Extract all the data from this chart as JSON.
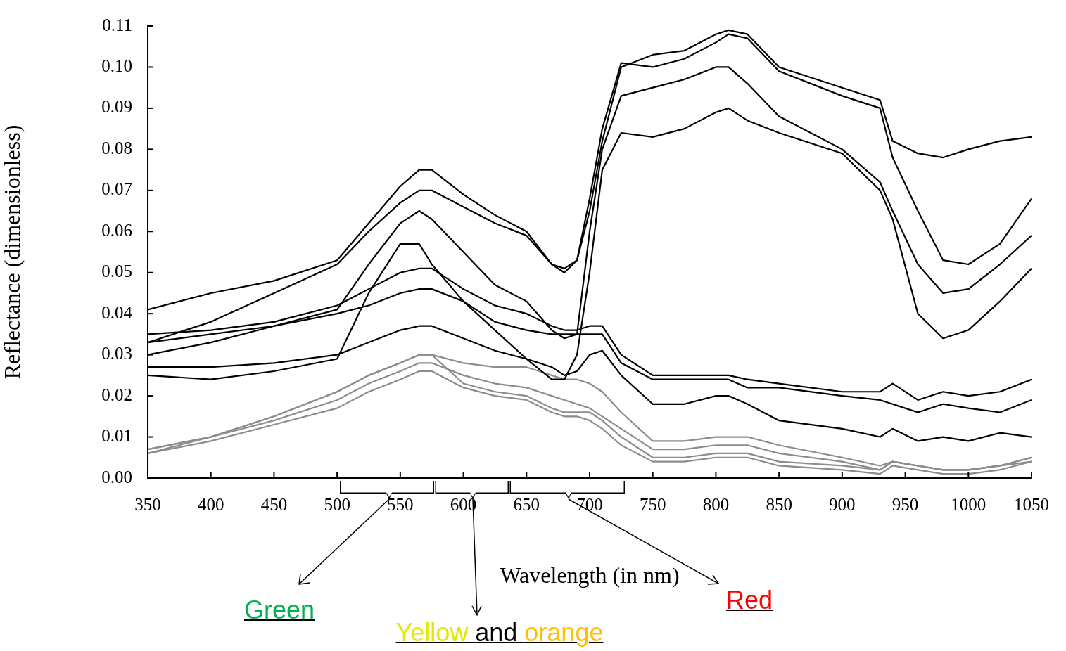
{
  "chart_data": {
    "type": "line",
    "xlabel": "Wavelength (in nm)",
    "ylabel": "Reflectance (dimensionless)",
    "x": [
      350,
      400,
      450,
      500,
      525,
      550,
      565,
      575,
      600,
      625,
      650,
      670,
      680,
      690,
      700,
      710,
      725,
      750,
      775,
      800,
      810,
      825,
      850,
      900,
      930,
      940,
      960,
      980,
      1000,
      1025,
      1050
    ],
    "series": [
      {
        "color": "#000000",
        "values": [
          0.041,
          0.045,
          0.048,
          0.053,
          0.062,
          0.071,
          0.075,
          0.075,
          0.069,
          0.064,
          0.06,
          0.052,
          0.051,
          0.053,
          0.065,
          0.082,
          0.1,
          0.103,
          0.104,
          0.108,
          0.109,
          0.108,
          0.1,
          0.095,
          0.092,
          0.082,
          0.079,
          0.078,
          0.08,
          0.082,
          0.083
        ]
      },
      {
        "color": "#000000",
        "values": [
          0.033,
          0.038,
          0.045,
          0.052,
          0.06,
          0.067,
          0.07,
          0.07,
          0.066,
          0.062,
          0.059,
          0.052,
          0.05,
          0.053,
          0.068,
          0.085,
          0.101,
          0.1,
          0.102,
          0.106,
          0.108,
          0.107,
          0.099,
          0.093,
          0.09,
          0.078,
          0.065,
          0.053,
          0.052,
          0.057,
          0.068
        ]
      },
      {
        "color": "#000000",
        "values": [
          0.03,
          0.033,
          0.037,
          0.041,
          0.052,
          0.062,
          0.065,
          0.063,
          0.055,
          0.047,
          0.043,
          0.036,
          0.034,
          0.035,
          0.06,
          0.08,
          0.093,
          0.095,
          0.097,
          0.1,
          0.1,
          0.096,
          0.088,
          0.08,
          0.072,
          0.065,
          0.052,
          0.045,
          0.046,
          0.052,
          0.059
        ]
      },
      {
        "color": "#000000",
        "values": [
          0.025,
          0.024,
          0.026,
          0.029,
          0.045,
          0.057,
          0.057,
          0.052,
          0.043,
          0.036,
          0.029,
          0.024,
          0.024,
          0.03,
          0.05,
          0.075,
          0.084,
          0.083,
          0.085,
          0.089,
          0.09,
          0.087,
          0.084,
          0.079,
          0.07,
          0.063,
          0.04,
          0.034,
          0.036,
          0.043,
          0.051
        ]
      },
      {
        "color": "#000000",
        "values": [
          0.035,
          0.036,
          0.038,
          0.042,
          0.046,
          0.05,
          0.051,
          0.051,
          0.046,
          0.042,
          0.04,
          0.037,
          0.036,
          0.036,
          0.037,
          0.037,
          0.03,
          0.025,
          0.025,
          0.025,
          0.025,
          0.024,
          0.023,
          0.021,
          0.021,
          0.023,
          0.019,
          0.021,
          0.02,
          0.021,
          0.024
        ]
      },
      {
        "color": "#000000",
        "values": [
          0.033,
          0.035,
          0.037,
          0.04,
          0.042,
          0.045,
          0.046,
          0.046,
          0.043,
          0.038,
          0.036,
          0.035,
          0.035,
          0.035,
          0.035,
          0.035,
          0.028,
          0.024,
          0.024,
          0.024,
          0.024,
          0.022,
          0.022,
          0.02,
          0.019,
          0.018,
          0.016,
          0.018,
          0.017,
          0.016,
          0.019
        ]
      },
      {
        "color": "#000000",
        "values": [
          0.027,
          0.027,
          0.028,
          0.03,
          0.033,
          0.036,
          0.037,
          0.037,
          0.034,
          0.031,
          0.029,
          0.027,
          0.025,
          0.026,
          0.03,
          0.031,
          0.025,
          0.018,
          0.018,
          0.02,
          0.02,
          0.018,
          0.014,
          0.012,
          0.01,
          0.012,
          0.009,
          0.01,
          0.009,
          0.011,
          0.01
        ]
      },
      {
        "color": "#8c8c8c",
        "values": [
          0.006,
          0.01,
          0.015,
          0.021,
          0.025,
          0.028,
          0.03,
          0.03,
          0.028,
          0.027,
          0.027,
          0.025,
          0.024,
          0.024,
          0.023,
          0.021,
          0.016,
          0.009,
          0.009,
          0.01,
          0.01,
          0.01,
          0.008,
          0.005,
          0.003,
          0.004,
          0.003,
          0.002,
          0.002,
          0.003,
          0.005
        ]
      },
      {
        "color": "#8c8c8c",
        "values": [
          0.007,
          0.01,
          0.015,
          0.021,
          0.025,
          0.028,
          0.03,
          0.03,
          0.023,
          0.021,
          0.02,
          0.017,
          0.016,
          0.016,
          0.016,
          0.014,
          0.01,
          0.005,
          0.005,
          0.006,
          0.006,
          0.006,
          0.004,
          0.003,
          0.002,
          0.004,
          0.003,
          0.002,
          0.002,
          0.003,
          0.005
        ]
      },
      {
        "color": "#8c8c8c",
        "values": [
          0.007,
          0.01,
          0.014,
          0.019,
          0.023,
          0.026,
          0.028,
          0.028,
          0.025,
          0.023,
          0.022,
          0.02,
          0.019,
          0.018,
          0.017,
          0.015,
          0.012,
          0.007,
          0.007,
          0.008,
          0.008,
          0.008,
          0.006,
          0.004,
          0.002,
          0.004,
          0.003,
          0.002,
          0.002,
          0.003,
          0.004
        ]
      },
      {
        "color": "#8c8c8c",
        "values": [
          0.006,
          0.009,
          0.013,
          0.017,
          0.021,
          0.024,
          0.026,
          0.026,
          0.022,
          0.02,
          0.019,
          0.016,
          0.015,
          0.015,
          0.014,
          0.012,
          0.008,
          0.004,
          0.004,
          0.005,
          0.005,
          0.005,
          0.003,
          0.002,
          0.001,
          0.003,
          0.002,
          0.001,
          0.001,
          0.002,
          0.004
        ]
      }
    ],
    "xlim": [
      350,
      1050
    ],
    "xticks": [
      350,
      400,
      450,
      500,
      550,
      600,
      650,
      700,
      750,
      800,
      850,
      900,
      950,
      1000,
      1050
    ],
    "ylim": [
      0,
      0.11
    ],
    "yticks": [
      {
        "value": 0,
        "label": "0.00"
      },
      {
        "value": 0.01,
        "label": "0.01"
      },
      {
        "value": 0.02,
        "label": "0.02"
      },
      {
        "value": 0.03,
        "label": "0.03"
      },
      {
        "value": 0.04,
        "label": "0.04"
      },
      {
        "value": 0.05,
        "label": "0.05"
      },
      {
        "value": 0.06,
        "label": "0.06"
      },
      {
        "value": 0.07,
        "label": "0.07"
      },
      {
        "value": 0.08,
        "label": "0.08"
      },
      {
        "value": 0.09,
        "label": "0.09"
      },
      {
        "value": 0.1,
        "label": "0.10"
      },
      {
        "value": 0.11,
        "label": "0.11"
      }
    ],
    "annotations": [
      "Green",
      "Yellow and orange",
      "Red"
    ],
    "grid": false,
    "legend": false,
    "marker": "none",
    "line_style": "solid"
  }
}
